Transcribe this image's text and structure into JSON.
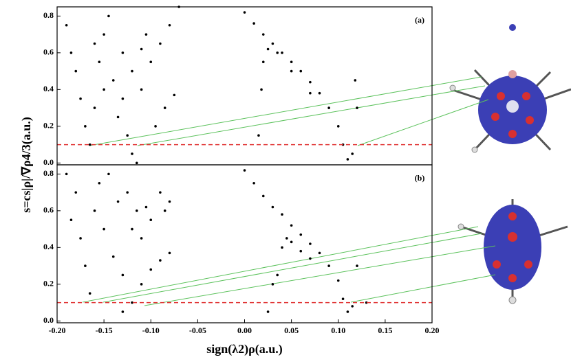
{
  "chart_data": [
    {
      "type": "scatter",
      "panel_label": "(a)",
      "ylabel": "s=cs|ρ|/∇ρ4/3(a.u.)",
      "xlim": [
        -0.2,
        0.2
      ],
      "ylim": [
        -0.01,
        0.85
      ],
      "yticks": [
        {
          "value": 0,
          "label": "0.0"
        },
        0.2,
        0.4,
        0.6,
        0.8
      ],
      "reference_line": {
        "value": 0.1,
        "color": "#e03030"
      },
      "series": [
        {
          "color": "#000000",
          "x": [
            -0.19,
            -0.185,
            -0.18,
            -0.175,
            -0.17,
            -0.165,
            -0.16,
            -0.155,
            -0.15,
            -0.145,
            -0.14,
            -0.135,
            -0.13,
            -0.125,
            -0.12,
            -0.115,
            -0.11,
            -0.105,
            -0.1,
            -0.09,
            -0.08,
            -0.07,
            -0.095,
            -0.085,
            -0.075,
            -0.16,
            -0.15,
            -0.13,
            -0.12,
            -0.11,
            0.0,
            0.01,
            0.02,
            0.03,
            0.04,
            0.05,
            0.06,
            0.07,
            0.08,
            0.09,
            0.1,
            0.105,
            0.11,
            0.115,
            0.12,
            0.118,
            0.015,
            0.018,
            0.02,
            0.025,
            0.035,
            0.05,
            0.07
          ],
          "values": [
            0.75,
            0.6,
            0.5,
            0.35,
            0.2,
            0.1,
            0.3,
            0.55,
            0.7,
            0.8,
            0.45,
            0.25,
            0.6,
            0.15,
            0.05,
            0.0,
            0.4,
            0.7,
            0.55,
            0.65,
            0.75,
            0.85,
            0.2,
            0.3,
            0.37,
            0.65,
            0.4,
            0.35,
            0.5,
            0.62,
            0.82,
            0.76,
            0.7,
            0.65,
            0.6,
            0.55,
            0.5,
            0.44,
            0.38,
            0.3,
            0.2,
            0.1,
            0.02,
            0.05,
            0.3,
            0.45,
            0.15,
            0.4,
            0.55,
            0.62,
            0.6,
            0.5,
            0.38
          ]
        }
      ]
    },
    {
      "type": "scatter",
      "panel_label": "(b)",
      "xlabel": "sign(λ2)ρ(a.u.)",
      "xlim": [
        -0.2,
        0.2
      ],
      "ylim": [
        -0.01,
        0.85
      ],
      "xticks": [
        {
          "value": -0.2,
          "label": "-0.20"
        },
        {
          "value": -0.15,
          "label": "-0.15"
        },
        {
          "value": -0.1,
          "label": "-0.10"
        },
        {
          "value": -0.05,
          "label": "-0.05"
        },
        {
          "value": 0,
          "label": "0.00"
        },
        {
          "value": 0.05,
          "label": "0.05"
        },
        {
          "value": 0.1,
          "label": "0.10"
        },
        {
          "value": 0.15,
          "label": "0.15"
        },
        {
          "value": 0.2,
          "label": "0.20"
        }
      ],
      "yticks": [
        {
          "value": 0,
          "label": "0.0"
        },
        0.2,
        0.4,
        0.6,
        0.8
      ],
      "reference_line": {
        "value": 0.1,
        "color": "#e03030"
      },
      "series": [
        {
          "color": "#000000",
          "x": [
            -0.19,
            -0.185,
            -0.18,
            -0.175,
            -0.17,
            -0.165,
            -0.16,
            -0.155,
            -0.15,
            -0.145,
            -0.14,
            -0.135,
            -0.13,
            -0.125,
            -0.12,
            -0.115,
            -0.11,
            -0.105,
            -0.1,
            -0.09,
            -0.085,
            -0.08,
            -0.13,
            -0.12,
            -0.11,
            -0.1,
            -0.09,
            -0.08,
            0.0,
            0.01,
            0.02,
            0.03,
            0.04,
            0.05,
            0.06,
            0.07,
            0.08,
            0.09,
            0.1,
            0.105,
            0.11,
            0.115,
            0.12,
            0.13,
            0.035,
            0.04,
            0.045,
            0.05,
            0.06,
            0.07,
            0.025,
            0.03
          ],
          "values": [
            0.8,
            0.55,
            0.7,
            0.45,
            0.3,
            0.15,
            0.6,
            0.75,
            0.5,
            0.8,
            0.35,
            0.65,
            0.25,
            0.7,
            0.5,
            0.6,
            0.45,
            0.62,
            0.55,
            0.7,
            0.6,
            0.65,
            0.05,
            0.1,
            0.2,
            0.28,
            0.33,
            0.37,
            0.82,
            0.75,
            0.68,
            0.62,
            0.58,
            0.52,
            0.47,
            0.42,
            0.37,
            0.3,
            0.22,
            0.12,
            0.05,
            0.08,
            0.3,
            0.1,
            0.25,
            0.4,
            0.45,
            0.43,
            0.38,
            0.34,
            0.05,
            0.2
          ]
        }
      ]
    }
  ]
}
